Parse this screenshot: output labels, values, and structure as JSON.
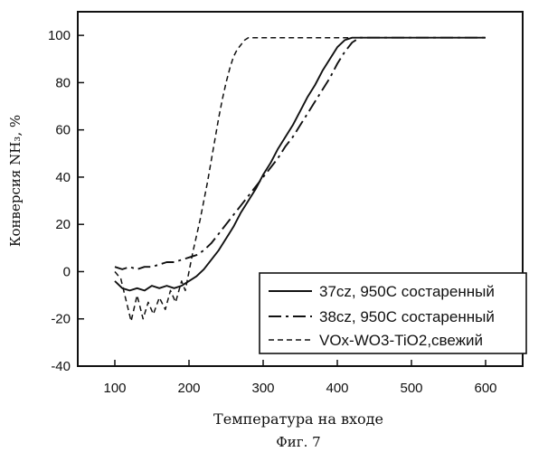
{
  "chart_data": {
    "type": "line",
    "title": "",
    "xlabel": "Температура на входе",
    "ylabel": "Конверсия NH₃, %",
    "xlim": [
      50,
      650
    ],
    "ylim": [
      -40,
      110
    ],
    "xticks": [
      100,
      200,
      300,
      400,
      500,
      600
    ],
    "yticks": [
      -40,
      -20,
      0,
      20,
      40,
      60,
      80,
      100
    ],
    "xtick_labels": [
      "100",
      "200",
      "300",
      "400",
      "500",
      "600"
    ],
    "ytick_labels": [
      "-40",
      "-20",
      "0",
      "20",
      "40",
      "60",
      "80",
      "100"
    ],
    "grid": false,
    "legend_position": "bottom-right",
    "caption": "Фиг. 7",
    "series": [
      {
        "name": "37cz, 950C состаренный",
        "style": "solid",
        "color": "#111111",
        "x": [
          100,
          110,
          120,
          130,
          140,
          150,
          160,
          170,
          180,
          190,
          200,
          210,
          220,
          230,
          240,
          250,
          260,
          270,
          280,
          290,
          300,
          310,
          320,
          330,
          340,
          350,
          360,
          370,
          380,
          390,
          400,
          410,
          420,
          430,
          600
        ],
        "y": [
          -4,
          -7,
          -8,
          -7,
          -8,
          -6,
          -7,
          -6,
          -7,
          -6,
          -4,
          -2,
          1,
          5,
          9,
          14,
          19,
          25,
          30,
          35,
          41,
          46,
          52,
          57,
          62,
          68,
          74,
          79,
          85,
          90,
          95,
          98,
          99,
          99,
          99
        ]
      },
      {
        "name": "38cz, 950C состаренный",
        "style": "dashdot",
        "color": "#111111",
        "x": [
          100,
          110,
          120,
          130,
          140,
          150,
          160,
          170,
          180,
          190,
          200,
          210,
          220,
          230,
          240,
          250,
          260,
          270,
          280,
          290,
          300,
          310,
          320,
          330,
          340,
          350,
          360,
          370,
          380,
          390,
          400,
          410,
          420,
          430,
          440,
          600
        ],
        "y": [
          2,
          1,
          2,
          1,
          2,
          2,
          3,
          4,
          4,
          5,
          6,
          7,
          9,
          12,
          16,
          20,
          24,
          28,
          32,
          36,
          40,
          44,
          48,
          53,
          57,
          62,
          67,
          72,
          77,
          82,
          88,
          93,
          97,
          99,
          99,
          99
        ]
      },
      {
        "name": "VOx-WO3-TiO2,свежий",
        "style": "dashed",
        "color": "#111111",
        "x": [
          100,
          108,
          115,
          122,
          130,
          138,
          145,
          152,
          160,
          168,
          175,
          182,
          190,
          195,
          200,
          205,
          210,
          215,
          220,
          225,
          230,
          235,
          240,
          245,
          250,
          255,
          260,
          265,
          270,
          275,
          280,
          285,
          290,
          300,
          600
        ],
        "y": [
          0,
          -3,
          -12,
          -21,
          -10,
          -20,
          -13,
          -18,
          -11,
          -16,
          -8,
          -13,
          -4,
          -8,
          0,
          8,
          15,
          22,
          30,
          38,
          47,
          56,
          65,
          73,
          80,
          86,
          91,
          94,
          96,
          98,
          99,
          99,
          99,
          99,
          99
        ]
      }
    ]
  },
  "legend": {
    "entries": [
      {
        "label": "37cz, 950C состаренный",
        "style": "solid"
      },
      {
        "label": "38cz, 950C состаренный",
        "style": "dashdot"
      },
      {
        "label": "VOx-WO3-TiO2,свежий",
        "style": "dashed"
      }
    ]
  }
}
